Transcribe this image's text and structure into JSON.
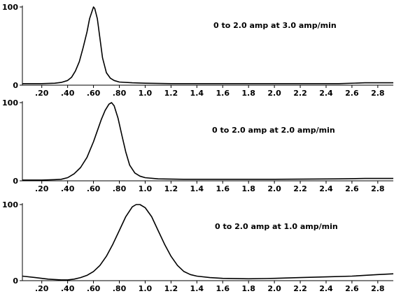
{
  "chart_data": [
    {
      "type": "line",
      "title": "",
      "annotation": "0 to 2.0 amp at 3.0 amp/min",
      "xlabel": "",
      "ylabel": "",
      "xlim": [
        0.05,
        2.92
      ],
      "ylim": [
        0,
        100
      ],
      "x_ticks": [
        0.2,
        0.4,
        0.6,
        0.8,
        1.0,
        1.2,
        1.4,
        1.6,
        1.8,
        2.0,
        2.2,
        2.4,
        2.6,
        2.8
      ],
      "x_tick_labels": [
        ".20",
        ".40",
        ".60",
        ".80",
        "1.0",
        "1.2",
        "1.4",
        "1.6",
        "1.8",
        "2.0",
        "2.2",
        "2.4",
        "2.6",
        "2.8"
      ],
      "y_ticks": [
        0,
        100
      ],
      "y_tick_labels": [
        "0",
        "100"
      ],
      "series": [
        {
          "x": [
            0.05,
            0.2,
            0.3,
            0.35,
            0.4,
            0.43,
            0.46,
            0.49,
            0.52,
            0.55,
            0.57,
            0.59,
            0.6,
            0.61,
            0.63,
            0.65,
            0.67,
            0.7,
            0.73,
            0.76,
            0.8,
            0.9,
            1.0,
            1.2,
            1.5,
            2.0,
            2.5,
            2.7,
            2.92
          ],
          "y": [
            2,
            2,
            2.5,
            3.5,
            6,
            10,
            18,
            30,
            48,
            68,
            85,
            95,
            100,
            98,
            85,
            60,
            35,
            16,
            9,
            6,
            4,
            3,
            2.5,
            2,
            2,
            2,
            2,
            3,
            3
          ]
        }
      ]
    },
    {
      "type": "line",
      "title": "",
      "annotation": "0 to 2.0 amp at 2.0 amp/min",
      "xlabel": "",
      "ylabel": "",
      "xlim": [
        0.05,
        2.92
      ],
      "ylim": [
        0,
        100
      ],
      "x_ticks": [
        0.2,
        0.4,
        0.6,
        0.8,
        1.0,
        1.2,
        1.4,
        1.6,
        1.8,
        2.0,
        2.2,
        2.4,
        2.6,
        2.8
      ],
      "x_tick_labels": [
        ".20",
        ".40",
        ".60",
        ".80",
        "1.0",
        "1.2",
        "1.4",
        "1.6",
        "1.8",
        "2.0",
        "2.2",
        "2.4",
        "2.6",
        "2.8"
      ],
      "y_ticks": [
        0,
        100
      ],
      "y_tick_labels": [
        "0",
        "100"
      ],
      "series": [
        {
          "x": [
            0.05,
            0.2,
            0.3,
            0.35,
            0.4,
            0.45,
            0.5,
            0.55,
            0.6,
            0.63,
            0.66,
            0.69,
            0.72,
            0.74,
            0.76,
            0.79,
            0.82,
            0.85,
            0.88,
            0.92,
            0.96,
            1.0,
            1.1,
            1.3,
            1.6,
            2.0,
            2.5,
            2.7,
            2.92
          ],
          "y": [
            1,
            1,
            1.5,
            2,
            4,
            9,
            17,
            30,
            50,
            64,
            78,
            90,
            98,
            100,
            96,
            80,
            58,
            37,
            20,
            10,
            6,
            4,
            2.5,
            2,
            2,
            2,
            2.5,
            3,
            3
          ]
        }
      ]
    },
    {
      "type": "line",
      "title": "",
      "annotation": "0 to 2.0 amp at 1.0 amp/min",
      "xlabel": "",
      "ylabel": "",
      "xlim": [
        0.05,
        2.92
      ],
      "ylim": [
        0,
        100
      ],
      "x_ticks": [
        0.2,
        0.4,
        0.6,
        0.8,
        1.0,
        1.2,
        1.4,
        1.6,
        1.8,
        2.0,
        2.2,
        2.4,
        2.6,
        2.8
      ],
      "x_tick_labels": [
        ".20",
        ".40",
        ".60",
        ".80",
        "1.0",
        "1.2",
        "1.4",
        "1.6",
        "1.8",
        "2.0",
        "2.2",
        "2.4",
        "2.6",
        "2.8"
      ],
      "y_ticks": [
        0,
        100
      ],
      "y_tick_labels": [
        "0",
        "100"
      ],
      "series": [
        {
          "x": [
            0.05,
            0.15,
            0.25,
            0.35,
            0.4,
            0.45,
            0.5,
            0.55,
            0.6,
            0.65,
            0.7,
            0.75,
            0.8,
            0.85,
            0.9,
            0.93,
            0.96,
            1.0,
            1.05,
            1.1,
            1.15,
            1.2,
            1.25,
            1.3,
            1.35,
            1.4,
            1.5,
            1.6,
            1.8,
            2.0,
            2.2,
            2.4,
            2.6,
            2.8,
            2.92
          ],
          "y": [
            6,
            4,
            2,
            1,
            1,
            2,
            4,
            7,
            12,
            20,
            32,
            48,
            66,
            84,
            97,
            100,
            100,
            96,
            84,
            66,
            48,
            32,
            20,
            12,
            8,
            6,
            4,
            3,
            2.5,
            3,
            4,
            5,
            6,
            8,
            9
          ]
        }
      ]
    }
  ]
}
